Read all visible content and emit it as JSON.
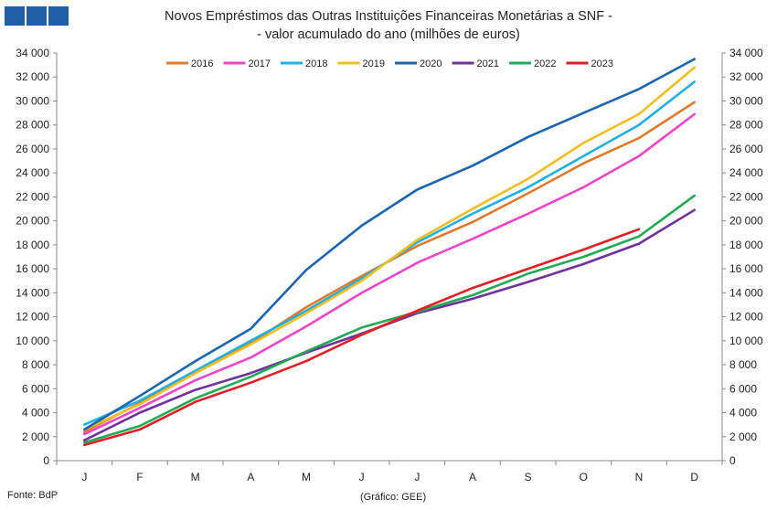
{
  "header": {
    "title_line1": "Novos Empréstimos das Outras Instituições Financeiras Monetárias a SNF -",
    "title_line2": "- valor acumulado do ano (milhões de euros)"
  },
  "footer": {
    "source": "Fonte: BdP",
    "credit": "(Gráfico: GEE)"
  },
  "logo_color": "#1f5fa8",
  "chart_data": {
    "type": "line",
    "title": "Novos Empréstimos das Outras Instituições Financeiras Monetárias a SNF - - valor acumulado do ano (milhões de euros)",
    "categories": [
      "J",
      "F",
      "M",
      "A",
      "M",
      "J",
      "J",
      "A",
      "S",
      "O",
      "N",
      "D"
    ],
    "ylim": [
      0,
      34000
    ],
    "yticks": [
      0,
      2000,
      4000,
      6000,
      8000,
      10000,
      12000,
      14000,
      16000,
      18000,
      20000,
      22000,
      24000,
      26000,
      28000,
      30000,
      32000,
      34000
    ],
    "ytick_labels": [
      "0",
      "2 000",
      "4 000",
      "6 000",
      "8 000",
      "10 000",
      "12 000",
      "14 000",
      "16 000",
      "18 000",
      "20 000",
      "22 000",
      "24 000",
      "26 000",
      "28 000",
      "30 000",
      "32 000",
      "34 000"
    ],
    "secondary_y_axis": true,
    "grid": "none",
    "legend_position": "top",
    "series": [
      {
        "name": "2016",
        "color": "#e07a2a",
        "values": [
          2400,
          4800,
          7300,
          9800,
          12800,
          15400,
          17900,
          19900,
          22300,
          24800,
          26900,
          29900
        ]
      },
      {
        "name": "2017",
        "color": "#ee44c8",
        "values": [
          2200,
          4400,
          6700,
          8600,
          11200,
          14000,
          16500,
          18500,
          20600,
          22800,
          25400,
          28900
        ]
      },
      {
        "name": "2018",
        "color": "#1fb0e6",
        "values": [
          3000,
          5000,
          7500,
          10000,
          12500,
          15200,
          18200,
          20600,
          22800,
          25400,
          28000,
          31600
        ]
      },
      {
        "name": "2019",
        "color": "#f2bd1f",
        "values": [
          2600,
          4700,
          7300,
          9700,
          12300,
          15000,
          18400,
          21000,
          23500,
          26500,
          28900,
          32800
        ]
      },
      {
        "name": "2020",
        "color": "#1a66b0",
        "values": [
          2600,
          5400,
          8300,
          11000,
          15900,
          19600,
          22600,
          24600,
          27000,
          29000,
          31000,
          33500
        ]
      },
      {
        "name": "2021",
        "color": "#7030a0",
        "values": [
          1700,
          4000,
          5900,
          7300,
          9000,
          10600,
          12300,
          13500,
          14900,
          16400,
          18100,
          20900
        ]
      },
      {
        "name": "2022",
        "color": "#1faa55",
        "values": [
          1500,
          2900,
          5200,
          7000,
          9100,
          11100,
          12400,
          13800,
          15600,
          17000,
          18700,
          22100
        ]
      },
      {
        "name": "2023",
        "color": "#e31e24",
        "values": [
          1300,
          2600,
          4900,
          6500,
          8300,
          10500,
          12500,
          14400,
          16000,
          17600,
          19300,
          null
        ]
      }
    ]
  }
}
